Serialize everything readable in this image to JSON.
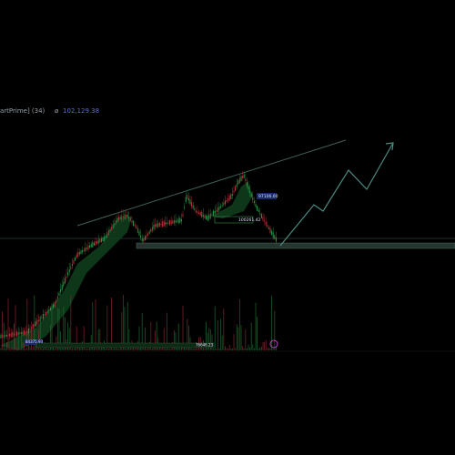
{
  "header": {
    "indicator": "artPrime] (34)",
    "symbol": "ø",
    "value": "102,129.38"
  },
  "labels": [
    "97106.00",
    "100261.42",
    "84375.93",
    "76646.23"
  ]
}
